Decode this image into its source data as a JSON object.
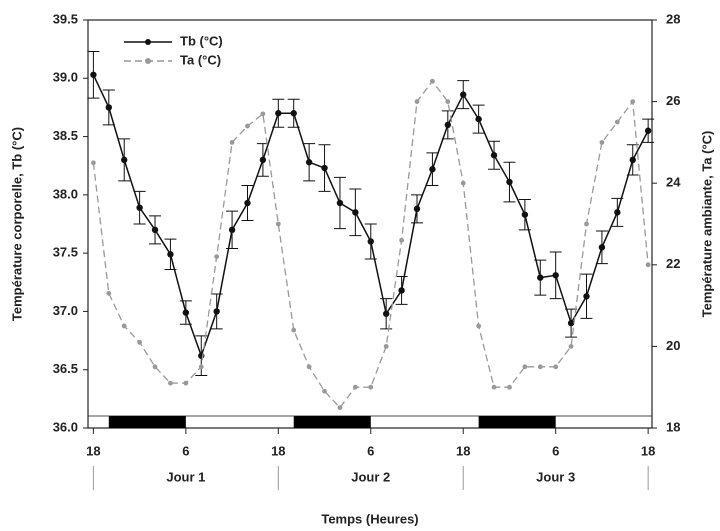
{
  "chart_data": {
    "type": "line",
    "xlabel": "Temps (Heures)",
    "ylabel": "Température corporelle, Tb (°C)",
    "y2label": "Température ambiante, Ta (°C)",
    "x": [
      0,
      2,
      4,
      6,
      8,
      10,
      12,
      14,
      16,
      18,
      20,
      22,
      24,
      26,
      28,
      30,
      32,
      34,
      36,
      38,
      40,
      42,
      44,
      46,
      48,
      50,
      52,
      54,
      56,
      58,
      60,
      62,
      64,
      66,
      68,
      70,
      72
    ],
    "series": [
      {
        "name": "Tb (°C)",
        "color": "#111111",
        "axis": "y",
        "style": "solid",
        "values": [
          39.03,
          38.75,
          38.3,
          37.89,
          37.7,
          37.49,
          36.99,
          36.62,
          37.0,
          37.7,
          37.93,
          38.3,
          38.7,
          38.7,
          38.28,
          38.23,
          37.93,
          37.85,
          37.6,
          36.98,
          37.18,
          37.88,
          38.22,
          38.6,
          38.86,
          38.65,
          38.34,
          38.11,
          37.83,
          37.29,
          37.31,
          36.9,
          37.13,
          37.55,
          37.85,
          38.3,
          38.55
        ],
        "errors": [
          0.2,
          0.15,
          0.18,
          0.14,
          0.12,
          0.13,
          0.1,
          0.17,
          0.15,
          0.16,
          0.15,
          0.14,
          0.12,
          0.12,
          0.16,
          0.2,
          0.22,
          0.2,
          0.15,
          0.13,
          0.12,
          0.12,
          0.14,
          0.12,
          0.12,
          0.12,
          0.12,
          0.17,
          0.13,
          0.15,
          0.2,
          0.12,
          0.19,
          0.14,
          0.12,
          0.13,
          0.1
        ]
      },
      {
        "name": "Ta (°C)",
        "color": "#999999",
        "axis": "y2",
        "style": "dashed",
        "values": [
          24.5,
          21.3,
          20.5,
          20.1,
          19.5,
          19.1,
          19.1,
          19.5,
          22.2,
          25.0,
          25.4,
          25.7,
          23.0,
          20.4,
          19.5,
          18.9,
          18.5,
          19.0,
          19.0,
          20.0,
          22.6,
          26.0,
          26.5,
          26.0,
          24.0,
          20.5,
          19.0,
          19.0,
          19.5,
          19.5,
          19.5,
          20.0,
          23.0,
          25.0,
          25.5,
          26.0,
          22.0
        ]
      }
    ],
    "xlim": [
      -0.7,
      72.5
    ],
    "xticks": [
      {
        "value": 0,
        "label": "18"
      },
      {
        "value": 12,
        "label": "6"
      },
      {
        "value": 24,
        "label": "18"
      },
      {
        "value": 36,
        "label": "6"
      },
      {
        "value": 48,
        "label": "18"
      },
      {
        "value": 60,
        "label": "6"
      },
      {
        "value": 72,
        "label": "18"
      }
    ],
    "ylim": [
      36,
      39.5
    ],
    "yticks": [
      {
        "value": 36,
        "label": "36.0"
      },
      36.5,
      {
        "value": 37,
        "label": "37.0"
      },
      37.5,
      {
        "value": 38,
        "label": "38.0"
      },
      38.5,
      {
        "value": 39,
        "label": "39.0"
      },
      39.5
    ],
    "y2lim": [
      18,
      28
    ],
    "y2ticks": [
      18,
      20,
      22,
      24,
      26,
      28
    ],
    "dark_periods": [
      [
        2,
        12
      ],
      [
        26,
        36
      ],
      [
        50,
        60
      ]
    ],
    "day_labels": [
      {
        "x": 12,
        "label": "Jour 1"
      },
      {
        "x": 36,
        "label": "Jour 2"
      },
      {
        "x": 60,
        "label": "Jour 3"
      }
    ],
    "day_boundaries": [
      0,
      24,
      48,
      72
    ],
    "legend": "upper left"
  }
}
